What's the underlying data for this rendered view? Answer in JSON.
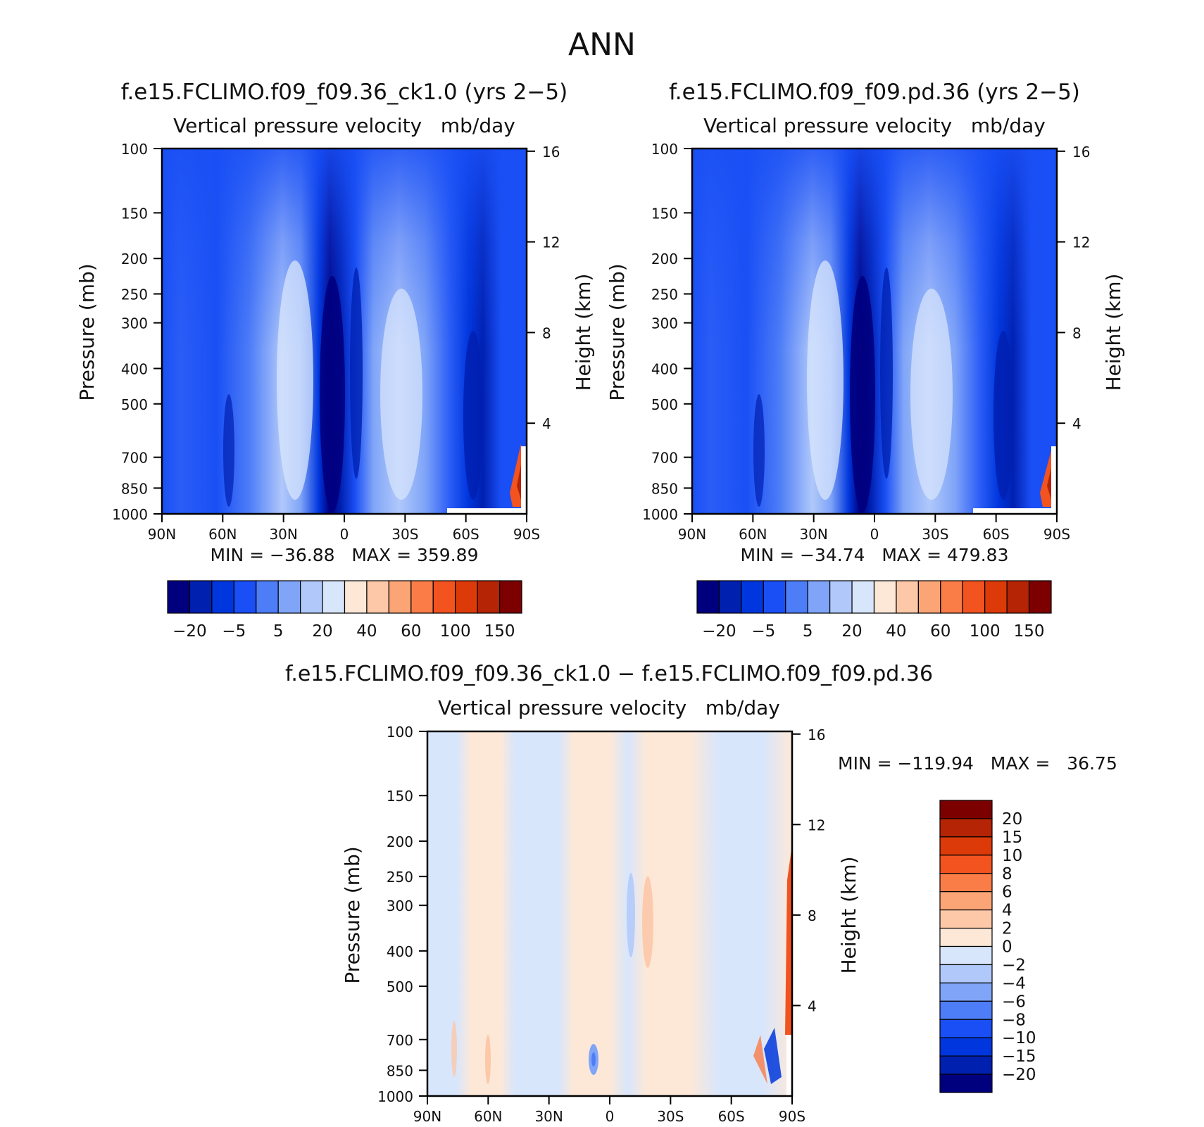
{
  "figure": {
    "title": "ANN"
  },
  "panels": [
    {
      "id": "p1",
      "title": "f.e15.FCLIMO.f09_f09.36_ck1.0 (yrs 2−5)",
      "subtitle": "Vertical pressure velocity   mb/day",
      "minmax": "MIN = −36.88   MAX = 359.89"
    },
    {
      "id": "p2",
      "title": "f.e15.FCLIMO.f09_f09.pd.36 (yrs 2−5)",
      "subtitle": "Vertical pressure velocity   mb/day",
      "minmax": "MIN = −34.74   MAX = 479.83"
    },
    {
      "id": "p3",
      "title": "f.e15.FCLIMO.f09_f09.36_ck1.0 − f.e15.FCLIMO.f09_f09.pd.36",
      "subtitle": "Vertical pressure velocity   mb/day",
      "minmax": "MIN = −119.94   MAX =   36.75"
    }
  ],
  "chart_data": [
    {
      "type": "heatmap",
      "panel": "p1",
      "title": "f.e15.FCLIMO.f09_f09.36_ck1.0 (yrs 2−5)",
      "xlabel": "",
      "ylabel": "Pressure (mb)",
      "y2label": "Height (km)",
      "x_ticks": [
        "90N",
        "60N",
        "30N",
        "0",
        "30S",
        "60S",
        "90S"
      ],
      "y_ticks": [
        100,
        150,
        200,
        250,
        300,
        400,
        500,
        700,
        850,
        1000
      ],
      "y2_ticks": [
        16,
        12,
        8,
        4
      ],
      "y_scale": "log",
      "ylim": [
        1000,
        100
      ],
      "min": -36.88,
      "max": 359.89,
      "colorbar_ticks": [
        "−20",
        "−5",
        "5",
        "20",
        "40",
        "60",
        "100",
        "150"
      ]
    },
    {
      "type": "heatmap",
      "panel": "p2",
      "title": "f.e15.FCLIMO.f09_f09.pd.36 (yrs 2−5)",
      "xlabel": "",
      "ylabel": "Pressure (mb)",
      "y2label": "Height (km)",
      "x_ticks": [
        "90N",
        "60N",
        "30N",
        "0",
        "30S",
        "60S",
        "90S"
      ],
      "y_ticks": [
        100,
        150,
        200,
        250,
        300,
        400,
        500,
        700,
        850,
        1000
      ],
      "y2_ticks": [
        16,
        12,
        8,
        4
      ],
      "y_scale": "log",
      "ylim": [
        1000,
        100
      ],
      "min": -34.74,
      "max": 479.83,
      "colorbar_ticks": [
        "−20",
        "−5",
        "5",
        "20",
        "40",
        "60",
        "100",
        "150"
      ]
    },
    {
      "type": "heatmap",
      "panel": "p3",
      "title": "f.e15.FCLIMO.f09_f09.36_ck1.0 − f.e15.FCLIMO.f09_f09.pd.36",
      "xlabel": "",
      "ylabel": "Pressure (mb)",
      "y2label": "Height (km)",
      "x_ticks": [
        "90N",
        "60N",
        "30N",
        "0",
        "30S",
        "60S",
        "90S"
      ],
      "y_ticks": [
        100,
        150,
        200,
        250,
        300,
        400,
        500,
        700,
        850,
        1000
      ],
      "y2_ticks": [
        16,
        12,
        8,
        4
      ],
      "y_scale": "log",
      "ylim": [
        1000,
        100
      ],
      "min": -119.94,
      "max": 36.75,
      "colorbar_ticks": [
        "20",
        "15",
        "10",
        "8",
        "6",
        "4",
        "2",
        "0",
        "−2",
        "−4",
        "−6",
        "−8",
        "−10",
        "−15",
        "−20"
      ]
    }
  ],
  "colorbars": {
    "fields_colors": [
      "#00007f",
      "#0020b0",
      "#0036dd",
      "#1a4ff5",
      "#4d7df7",
      "#80a5f8",
      "#b0c8fa",
      "#d8e6fc",
      "#fde8d8",
      "#fcc8a8",
      "#fba577",
      "#fa7c47",
      "#f2531f",
      "#dc3a08",
      "#b52405",
      "#7d0000"
    ],
    "diff_colors": [
      "#7d0000",
      "#b52405",
      "#dc3a08",
      "#f2531f",
      "#fa7c47",
      "#fba577",
      "#fcc8a8",
      "#fde8d8",
      "#d8e6fc",
      "#b0c8fa",
      "#80a5f8",
      "#4d7df7",
      "#1a4ff5",
      "#0036dd",
      "#0020b0",
      "#00007f"
    ]
  }
}
